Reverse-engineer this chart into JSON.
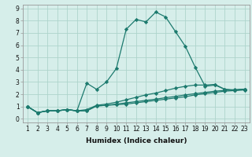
{
  "xlabel": "Humidex (Indice chaleur)",
  "x": [
    1,
    2,
    3,
    4,
    5,
    6,
    7,
    8,
    9,
    10,
    11,
    12,
    13,
    14,
    15,
    16,
    17,
    18,
    19,
    20,
    21,
    22,
    23
  ],
  "series": [
    [
      1.0,
      0.5,
      0.65,
      0.65,
      0.75,
      0.65,
      0.65,
      1.05,
      1.1,
      1.15,
      1.2,
      1.3,
      1.4,
      1.5,
      1.6,
      1.7,
      1.8,
      1.95,
      2.05,
      2.15,
      2.25,
      2.3,
      2.35
    ],
    [
      1.0,
      0.5,
      0.65,
      0.65,
      0.75,
      0.65,
      0.65,
      1.05,
      1.1,
      1.2,
      1.3,
      1.4,
      1.5,
      1.6,
      1.72,
      1.82,
      1.95,
      2.05,
      2.15,
      2.25,
      2.32,
      2.37,
      2.42
    ],
    [
      1.0,
      0.5,
      0.65,
      0.65,
      0.75,
      0.65,
      0.75,
      1.1,
      1.2,
      1.35,
      1.55,
      1.75,
      1.95,
      2.1,
      2.3,
      2.5,
      2.65,
      2.75,
      2.75,
      2.8,
      2.4,
      2.35,
      2.4
    ],
    [
      1.0,
      0.5,
      0.65,
      0.65,
      0.75,
      0.65,
      2.9,
      2.4,
      3.0,
      4.1,
      7.3,
      8.1,
      7.9,
      8.7,
      8.3,
      7.1,
      5.9,
      4.2,
      2.65,
      2.75,
      2.4,
      2.32,
      2.4
    ]
  ],
  "line_color": "#1c7a6e",
  "bg_color": "#d6eeea",
  "grid_color": "#aed4cc",
  "ylim": [
    -0.3,
    9.3
  ],
  "xlim": [
    0.5,
    23.5
  ],
  "yticks": [
    0,
    1,
    2,
    3,
    4,
    5,
    6,
    7,
    8,
    9
  ],
  "xticks": [
    1,
    2,
    3,
    4,
    5,
    6,
    7,
    8,
    9,
    10,
    11,
    12,
    13,
    14,
    15,
    16,
    17,
    18,
    19,
    20,
    21,
    22,
    23
  ],
  "tick_fontsize": 5.5,
  "xlabel_fontsize": 6.5,
  "marker": "D",
  "markersize": 2.2,
  "linewidth": 0.9
}
